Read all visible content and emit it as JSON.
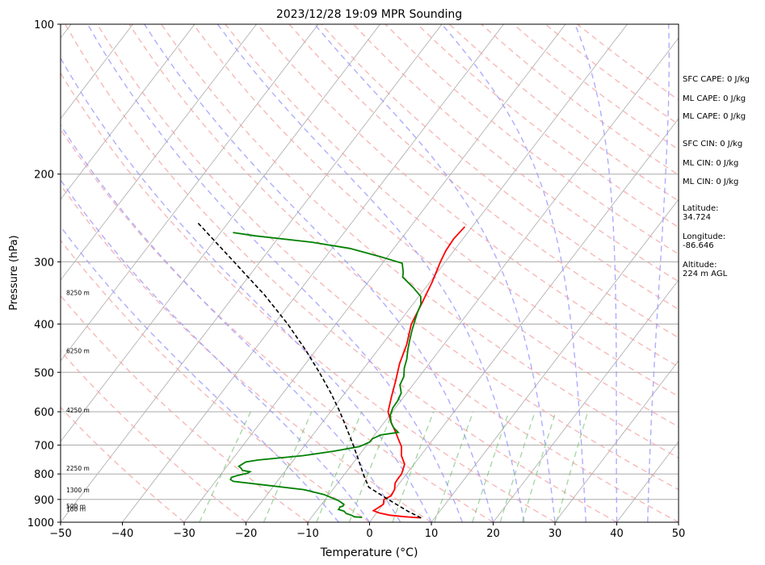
{
  "chart_data": {
    "type": "line",
    "title": "2023/12/28 19:09 MPR Sounding",
    "xlabel": "Temperature (°C)",
    "ylabel": "Pressure (hPa)",
    "xlim": [
      -50,
      50
    ],
    "ylim": [
      1000,
      100
    ],
    "y_scale": "log",
    "grid": true,
    "x_ticks": [
      -50,
      -40,
      -30,
      -20,
      -10,
      0,
      10,
      20,
      30,
      40,
      50
    ],
    "x_tick_labels": [
      "−50",
      "−40",
      "−30",
      "−20",
      "−10",
      "0",
      "10",
      "20",
      "30",
      "40",
      "50"
    ],
    "y_ticks": [
      100,
      200,
      300,
      400,
      500,
      600,
      700,
      800,
      900,
      1000
    ],
    "y_tick_labels": [
      "100",
      "200",
      "300",
      "400",
      "500",
      "600",
      "700",
      "800",
      "900",
      "1000"
    ],
    "height_labels": [
      {
        "p": 944,
        "text": "100 m"
      },
      {
        "p": 932,
        "text": "500 m"
      },
      {
        "p": 864,
        "text": "1300 m"
      },
      {
        "p": 782,
        "text": "2250 m"
      },
      {
        "p": 597,
        "text": "4250 m"
      },
      {
        "p": 454,
        "text": "6250 m"
      },
      {
        "p": 347,
        "text": "8250 m"
      }
    ],
    "series": [
      {
        "name": "",
        "role": "temperature",
        "color": "#ff0000",
        "points": [
          [
            980,
            7.8
          ],
          [
            975,
            5.0
          ],
          [
            968,
            2.4
          ],
          [
            958,
            0.4
          ],
          [
            948,
            -0.8
          ],
          [
            935,
            -0.4
          ],
          [
            920,
            0.0
          ],
          [
            900,
            -0.5
          ],
          [
            885,
            0.2
          ],
          [
            860,
            0.0
          ],
          [
            835,
            -0.7
          ],
          [
            820,
            -0.8
          ],
          [
            800,
            -0.8
          ],
          [
            785,
            -1.1
          ],
          [
            765,
            -1.5
          ],
          [
            735,
            -3.1
          ],
          [
            705,
            -4.2
          ],
          [
            680,
            -5.7
          ],
          [
            660,
            -6.9
          ],
          [
            630,
            -8.9
          ],
          [
            600,
            -10.7
          ],
          [
            560,
            -12.0
          ],
          [
            520,
            -13.3
          ],
          [
            480,
            -14.8
          ],
          [
            440,
            -16.0
          ],
          [
            400,
            -17.8
          ],
          [
            370,
            -18.5
          ],
          [
            330,
            -19.6
          ],
          [
            300,
            -20.8
          ],
          [
            285,
            -21.3
          ],
          [
            270,
            -21.5
          ],
          [
            255,
            -21.2
          ]
        ]
      },
      {
        "name": "",
        "role": "dewpoint",
        "color": "#008000",
        "points": [
          [
            978,
            -1.8
          ],
          [
            975,
            -3.2
          ],
          [
            970,
            -3.6
          ],
          [
            960,
            -4.9
          ],
          [
            950,
            -5.5
          ],
          [
            943,
            -6.6
          ],
          [
            937,
            -6.6
          ],
          [
            932,
            -6.7
          ],
          [
            928,
            -6.3
          ],
          [
            920,
            -6.4
          ],
          [
            905,
            -7.7
          ],
          [
            880,
            -10.8
          ],
          [
            860,
            -14.7
          ],
          [
            840,
            -22.3
          ],
          [
            828,
            -27.1
          ],
          [
            821,
            -27.8
          ],
          [
            813,
            -27.9
          ],
          [
            806,
            -27.2
          ],
          [
            797,
            -25.8
          ],
          [
            792,
            -25.6
          ],
          [
            787,
            -27.0
          ],
          [
            780,
            -27.4
          ],
          [
            772,
            -28.1
          ],
          [
            765,
            -27.8
          ],
          [
            757,
            -27.5
          ],
          [
            750,
            -25.7
          ],
          [
            735,
            -19.0
          ],
          [
            720,
            -14.6
          ],
          [
            705,
            -11.0
          ],
          [
            690,
            -9.9
          ],
          [
            680,
            -9.9
          ],
          [
            668,
            -9.0
          ],
          [
            660,
            -6.5
          ],
          [
            645,
            -7.9
          ],
          [
            630,
            -8.9
          ],
          [
            610,
            -9.9
          ],
          [
            590,
            -10.4
          ],
          [
            570,
            -10.5
          ],
          [
            550,
            -10.9
          ],
          [
            530,
            -12.1
          ],
          [
            510,
            -12.5
          ],
          [
            490,
            -13.5
          ],
          [
            470,
            -14.2
          ],
          [
            450,
            -15.2
          ],
          [
            430,
            -16.1
          ],
          [
            412,
            -16.9
          ],
          [
            395,
            -17.6
          ],
          [
            380,
            -18.2
          ],
          [
            365,
            -18.7
          ],
          [
            352,
            -19.7
          ],
          [
            338,
            -22.0
          ],
          [
            322,
            -25.0
          ],
          [
            315,
            -25.5
          ],
          [
            302,
            -26.8
          ],
          [
            293,
            -31.1
          ],
          [
            282,
            -37.1
          ],
          [
            274,
            -44.0
          ],
          [
            266,
            -54.0
          ],
          [
            262,
            -58.0
          ]
        ]
      },
      {
        "name": "",
        "role": "parcel",
        "color": "#000000",
        "points": [
          [
            980,
            7.8
          ],
          [
            950,
            4.8
          ],
          [
            900,
            0.2
          ],
          [
            850,
            -4.5
          ],
          [
            800,
            -7.0
          ],
          [
            750,
            -9.5
          ],
          [
            700,
            -12.2
          ],
          [
            650,
            -15.2
          ],
          [
            600,
            -18.5
          ],
          [
            550,
            -22.3
          ],
          [
            500,
            -26.7
          ],
          [
            450,
            -31.8
          ],
          [
            400,
            -37.8
          ],
          [
            350,
            -45.1
          ],
          [
            300,
            -54.2
          ],
          [
            250,
            -65.0
          ]
        ]
      }
    ]
  },
  "side_panel": {
    "sfc_cape": "SFC CAPE: 0 J/kg",
    "ml_cape_1": "ML CAPE: 0 J/kg",
    "ml_cape_2": "ML CAPE: 0 J/kg",
    "sfc_cin": "SFC CIN: 0 J/kg",
    "ml_cin_1": "ML CIN: 0 J/kg",
    "ml_cin_2": "ML CIN: 0 J/kg",
    "latitude_label": "Latitude:",
    "latitude_value": "34.724",
    "longitude_label": "Longitude:",
    "longitude_value": "-86.646",
    "altitude_label": "Altitude:",
    "altitude_value": "224 m AGL"
  },
  "colors": {
    "isotherm": "#aaaaaa",
    "dry_adiabat": "#f4a0a0",
    "moist_adiabat": "#9999ff",
    "mixing_ratio": "#66bb66",
    "isobar": "#aaaaaa"
  }
}
